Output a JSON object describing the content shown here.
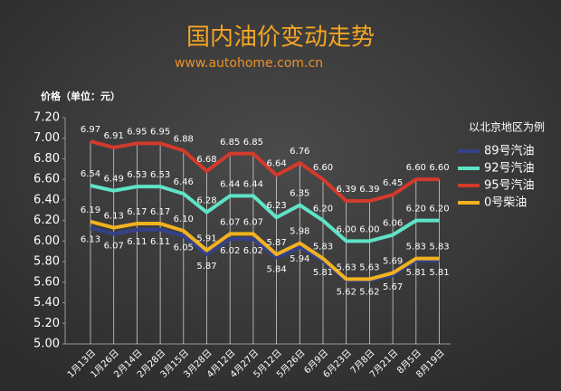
{
  "chart_data": {
    "type": "line",
    "title": "国内油价变动走势",
    "subtitle": "www.autohome.com.cn",
    "y_label": "价格（单位：元）",
    "legend_title": "以北京地区为例",
    "categories": [
      "1月13日",
      "1月26日",
      "2月14日",
      "2月28日",
      "3月15日",
      "3月28日",
      "4月12日",
      "4月27日",
      "5月12日",
      "5月26日",
      "6月9日",
      "6月23日",
      "7月8日",
      "7月21日",
      "8月5日",
      "8月19日"
    ],
    "series": [
      {
        "name": "89号汽油",
        "color": "#34418a",
        "label_side": "below",
        "values": [
          6.13,
          6.07,
          6.11,
          6.11,
          6.05,
          5.87,
          6.02,
          6.02,
          5.84,
          5.94,
          5.81,
          5.62,
          5.62,
          5.67,
          5.81,
          5.81
        ],
        "value_labels": [
          "6.13",
          "6.07",
          "6.11",
          "6.11",
          "6.05",
          "5.87",
          "6.02",
          "6.02",
          "5.84",
          "5.94",
          "5.81",
          "5.62",
          "5.62",
          "5.67",
          "5.81",
          "5.81"
        ]
      },
      {
        "name": "92号汽油",
        "color": "#5fe3c6",
        "label_side": "above",
        "values": [
          6.54,
          6.49,
          6.53,
          6.53,
          6.46,
          6.28,
          6.44,
          6.44,
          6.23,
          6.35,
          6.2,
          6.0,
          6.0,
          6.06,
          6.2,
          6.2
        ],
        "value_labels": [
          "6.54",
          "6.49",
          "6.53",
          "6.53",
          "6.46",
          "6.28",
          "6.44",
          "6.44",
          "6.23",
          "6.35",
          "6.20",
          "6.00",
          "6.00",
          "6.06",
          "6.20",
          "6.20"
        ]
      },
      {
        "name": "95号汽油",
        "color": "#d23a2c",
        "label_side": "above",
        "values": [
          6.97,
          6.91,
          6.95,
          6.95,
          6.88,
          6.68,
          6.85,
          6.85,
          6.64,
          6.76,
          6.6,
          6.39,
          6.39,
          6.45,
          6.6,
          6.6
        ],
        "value_labels": [
          "6.97",
          "6.91",
          "6.95",
          "6.95",
          "6.88",
          "6.68",
          "6.85",
          "6.85",
          "6.64",
          "6.76",
          "6.60",
          "6.39",
          "6.39",
          "6.45",
          "6.60",
          "6.60"
        ]
      },
      {
        "name": "0号柴油",
        "color": "#f2b21f",
        "label_side": "above",
        "values": [
          6.19,
          6.13,
          6.17,
          6.17,
          6.1,
          5.91,
          6.07,
          6.07,
          5.87,
          5.98,
          5.83,
          5.63,
          5.63,
          5.69,
          5.83,
          5.83
        ],
        "value_labels": [
          "6.19",
          "6.13",
          "6.17",
          "6.17",
          "6.10",
          "5.91",
          "6.07",
          "6.07",
          "5.87",
          "5.98",
          "5.83",
          "5.63",
          "5.63",
          "5.69",
          "5.83",
          "5.83"
        ]
      }
    ],
    "ylim": [
      5.0,
      7.2
    ],
    "yticks": [
      {
        "value": 5.0,
        "label": "5.00"
      },
      {
        "value": 5.2,
        "label": "5.20"
      },
      {
        "value": 5.4,
        "label": "5.40"
      },
      {
        "value": 5.6,
        "label": "5.60"
      },
      {
        "value": 5.8,
        "label": "5.80"
      },
      {
        "value": 6.0,
        "label": "6.00"
      },
      {
        "value": 6.2,
        "label": "6.20"
      },
      {
        "value": 6.4,
        "label": "6.40"
      },
      {
        "value": 6.6,
        "label": "6.60"
      },
      {
        "value": 6.8,
        "label": "6.80"
      },
      {
        "value": 7.0,
        "label": "7.00"
      },
      {
        "value": 7.2,
        "label": "7.20"
      }
    ]
  }
}
